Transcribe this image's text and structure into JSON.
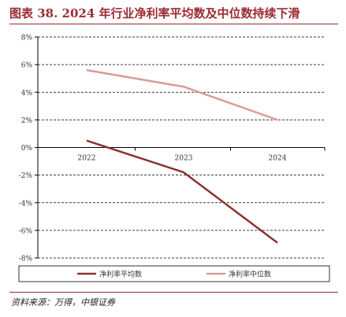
{
  "title": "图表 38. 2024 年行业净利率平均数及中位数持续下滑",
  "source": "资料来源：万得，中银证券",
  "colors": {
    "accent": "#9b2b33",
    "mean": "#8b3232",
    "median": "#d99a9b",
    "grid": "#000000"
  },
  "chart_data": {
    "type": "line",
    "x": [
      "2022",
      "2023",
      "2024"
    ],
    "yticks": [
      "8%",
      "6%",
      "4%",
      "2%",
      "0%",
      "-2%",
      "-4%",
      "-6%",
      "-8%"
    ],
    "ylim": [
      -8,
      8
    ],
    "grid": true,
    "legend_placement": "bottom",
    "series": [
      {
        "name": "净利率平均数",
        "values": [
          0.5,
          -1.8,
          -6.9
        ],
        "color": "#8b3232"
      },
      {
        "name": "净利率中位数",
        "values": [
          5.6,
          4.4,
          2.0
        ],
        "color": "#d99a9b"
      }
    ]
  }
}
